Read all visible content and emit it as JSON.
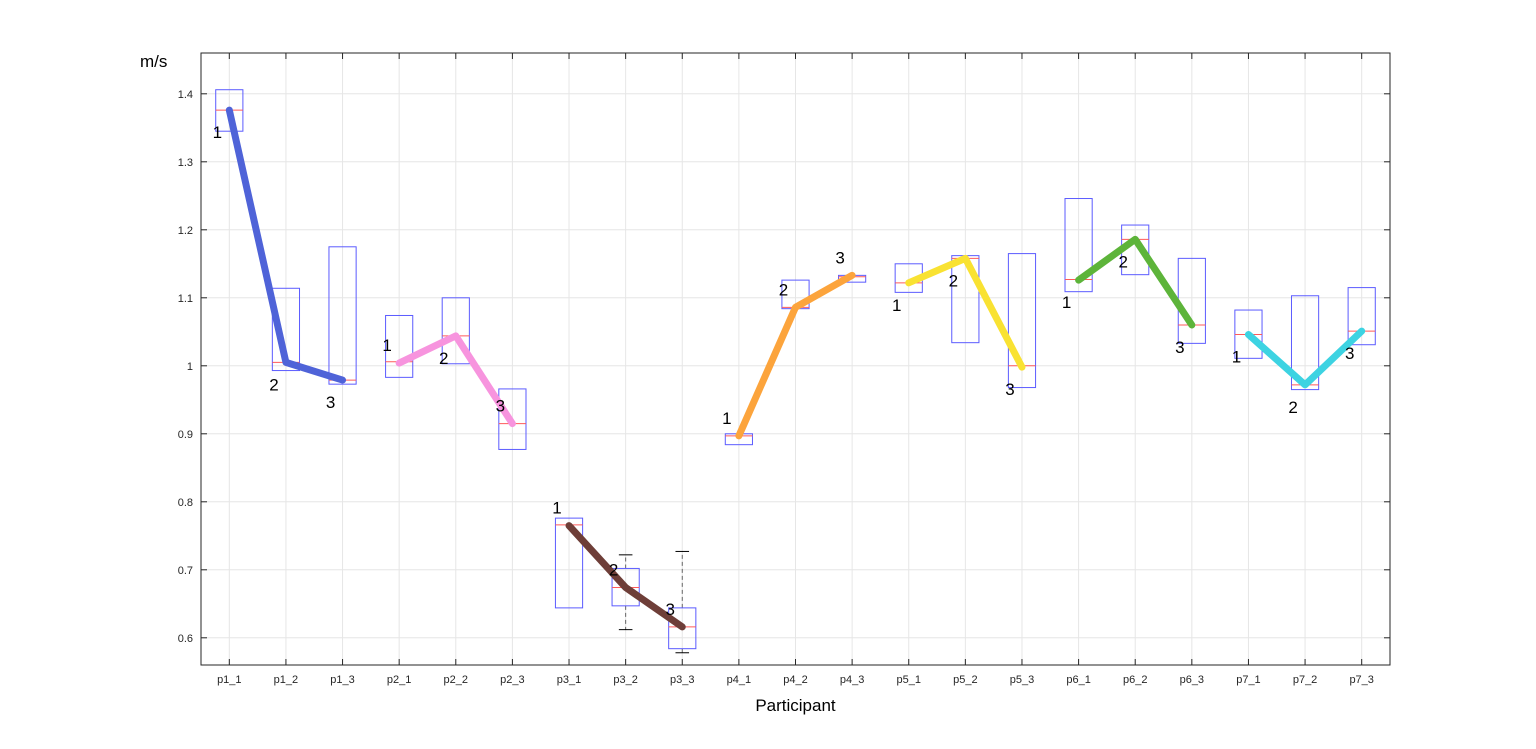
{
  "chart_data": {
    "type": "box",
    "xlabel": "Participant",
    "ylabel": "m/s",
    "ylim": [
      0.56,
      1.46
    ],
    "yticks": [
      0.6,
      0.7,
      0.8,
      0.9,
      1,
      1.1,
      1.2,
      1.3,
      1.4
    ],
    "ytick_labels": [
      "0.6",
      "0.7",
      "0.8",
      "0.9",
      "1",
      "1.1",
      "1.2",
      "1.3",
      "1.4"
    ],
    "grid": true,
    "categories": [
      "p1_1",
      "p1_2",
      "p1_3",
      "p2_1",
      "p2_2",
      "p2_3",
      "p3_1",
      "p3_2",
      "p3_3",
      "p4_1",
      "p4_2",
      "p4_3",
      "p5_1",
      "p5_2",
      "p5_3",
      "p6_1",
      "p6_2",
      "p6_3",
      "p7_1",
      "p7_2",
      "p7_3"
    ],
    "boxes": [
      {
        "category": "p1_1",
        "q1": 1.345,
        "median": 1.376,
        "q3": 1.406
      },
      {
        "category": "p1_2",
        "q1": 0.993,
        "median": 1.005,
        "q3": 1.114
      },
      {
        "category": "p1_3",
        "q1": 0.973,
        "median": 0.979,
        "q3": 1.175
      },
      {
        "category": "p2_1",
        "q1": 0.983,
        "median": 1.006,
        "q3": 1.074
      },
      {
        "category": "p2_2",
        "q1": 1.003,
        "median": 1.044,
        "q3": 1.1
      },
      {
        "category": "p2_3",
        "q1": 0.877,
        "median": 0.915,
        "q3": 0.966
      },
      {
        "category": "p3_1",
        "q1": 0.644,
        "median": 0.766,
        "q3": 0.776
      },
      {
        "category": "p3_2",
        "q1": 0.647,
        "median": 0.674,
        "q3": 0.702,
        "whisker_low": 0.612,
        "whisker_high": 0.722
      },
      {
        "category": "p3_3",
        "q1": 0.584,
        "median": 0.616,
        "q3": 0.644,
        "whisker_low": 0.578,
        "whisker_high": 0.727
      },
      {
        "category": "p4_1",
        "q1": 0.884,
        "median": 0.897,
        "q3": 0.9
      },
      {
        "category": "p4_2",
        "q1": 1.084,
        "median": 1.086,
        "q3": 1.126
      },
      {
        "category": "p4_3",
        "q1": 1.123,
        "median": 1.131,
        "q3": 1.133
      },
      {
        "category": "p5_1",
        "q1": 1.108,
        "median": 1.122,
        "q3": 1.15
      },
      {
        "category": "p5_2",
        "q1": 1.034,
        "median": 1.158,
        "q3": 1.162
      },
      {
        "category": "p5_3",
        "q1": 0.968,
        "median": 1.0,
        "q3": 1.165
      },
      {
        "category": "p6_1",
        "q1": 1.109,
        "median": 1.127,
        "q3": 1.246
      },
      {
        "category": "p6_2",
        "q1": 1.134,
        "median": 1.186,
        "q3": 1.207
      },
      {
        "category": "p6_3",
        "q1": 1.033,
        "median": 1.06,
        "q3": 1.158
      },
      {
        "category": "p7_1",
        "q1": 1.011,
        "median": 1.046,
        "q3": 1.082
      },
      {
        "category": "p7_2",
        "q1": 0.965,
        "median": 0.972,
        "q3": 1.103
      },
      {
        "category": "p7_3",
        "q1": 1.031,
        "median": 1.051,
        "q3": 1.115
      }
    ],
    "series": [
      {
        "color": "#4f63d8",
        "x": [
          "p1_1",
          "p1_2",
          "p1_3"
        ],
        "values": [
          1.376,
          1.005,
          0.979
        ],
        "labels": [
          "1",
          "2",
          "3"
        ],
        "label_pos": [
          "below",
          "below",
          "below"
        ]
      },
      {
        "color": "#f794de",
        "x": [
          "p2_1",
          "p2_2",
          "p2_3"
        ],
        "values": [
          1.004,
          1.044,
          0.915
        ],
        "labels": [
          "1",
          "2",
          "3"
        ],
        "label_pos": [
          "above",
          "below",
          "above"
        ]
      },
      {
        "color": "#6e3e38",
        "x": [
          "p3_1",
          "p3_2",
          "p3_3"
        ],
        "values": [
          0.765,
          0.674,
          0.616
        ],
        "labels": [
          "1",
          "2",
          "3"
        ],
        "label_pos": [
          "above",
          "above",
          "above"
        ]
      },
      {
        "color": "#fca43c",
        "x": [
          "p4_1",
          "p4_2",
          "p4_3"
        ],
        "values": [
          0.897,
          1.086,
          1.133
        ],
        "labels": [
          "1",
          "2",
          "3"
        ],
        "label_pos": [
          "above",
          "above",
          "above"
        ]
      },
      {
        "color": "#f9e232",
        "x": [
          "p5_1",
          "p5_2",
          "p5_3"
        ],
        "values": [
          1.122,
          1.158,
          0.998
        ],
        "labels": [
          "1",
          "2",
          "3"
        ],
        "label_pos": [
          "below",
          "below",
          "below"
        ]
      },
      {
        "color": "#5db43a",
        "x": [
          "p6_1",
          "p6_2",
          "p6_3"
        ],
        "values": [
          1.126,
          1.186,
          1.06
        ],
        "labels": [
          "1",
          "2",
          "3"
        ],
        "label_pos": [
          "below",
          "below",
          "below"
        ]
      },
      {
        "color": "#3dd3e2",
        "x": [
          "p7_1",
          "p7_2",
          "p7_3"
        ],
        "values": [
          1.046,
          0.972,
          1.051
        ],
        "labels": [
          "1",
          "2",
          "3"
        ],
        "label_pos": [
          "below",
          "below",
          "below"
        ]
      }
    ],
    "colors": {
      "box_edge": "#5b5bff",
      "median": "#ff5a5a",
      "whisker": "#666666",
      "grid": "#e6e6e6",
      "axis": "#262626"
    }
  }
}
